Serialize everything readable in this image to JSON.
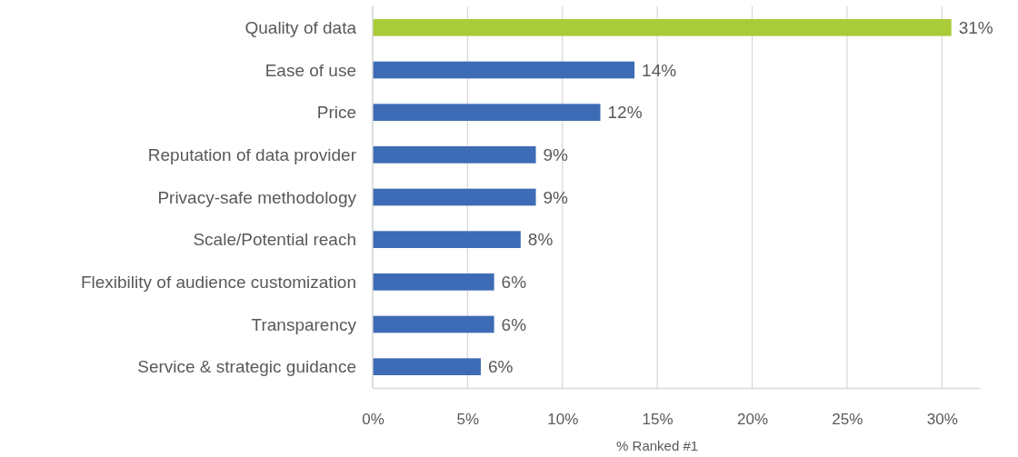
{
  "chart_data": {
    "type": "bar",
    "orientation": "horizontal",
    "xlabel": "% Ranked #1",
    "categories": [
      "Quality of data",
      "Ease of use ",
      "Price",
      "Reputation of data provider",
      "Privacy-safe methodology",
      "Scale/Potential reach",
      "Flexibility of audience customization",
      "Transparency",
      "Service & strategic guidance"
    ],
    "values": [
      30.5,
      13.8,
      12.0,
      8.6,
      8.6,
      7.8,
      6.4,
      6.4,
      5.7
    ],
    "value_labels": [
      "31%",
      "14%",
      "12%",
      "9%",
      "9%",
      "8%",
      "6%",
      "6%",
      "6%"
    ],
    "colors": [
      "#a9cb38",
      "#3d6bb5",
      "#3d6bb5",
      "#3d6bb5",
      "#3d6bb5",
      "#3d6bb5",
      "#3d6bb5",
      "#3d6bb5",
      "#3d6bb5"
    ],
    "xlim": [
      0,
      32
    ],
    "xticks": [
      {
        "value": 0,
        "label": "0%"
      },
      {
        "value": 5,
        "label": "5%"
      },
      {
        "value": 10,
        "label": "10%"
      },
      {
        "value": 15,
        "label": "15%"
      },
      {
        "value": 20,
        "label": "20%"
      },
      {
        "value": 25,
        "label": "25%"
      },
      {
        "value": 30,
        "label": "30%"
      }
    ],
    "grid": "x"
  }
}
